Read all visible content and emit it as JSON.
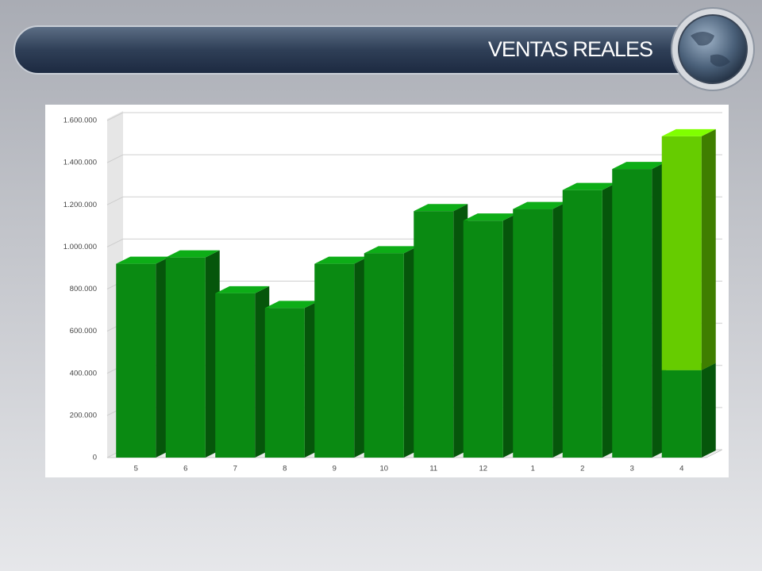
{
  "chart_data": {
    "type": "bar",
    "title": "VENTAS REALES",
    "categories": [
      "5",
      "6",
      "7",
      "8",
      "9",
      "10",
      "11",
      "12",
      "1",
      "2",
      "3",
      "4"
    ],
    "series": [
      {
        "color": "#0a8a12",
        "values": [
          920000,
          950000,
          780000,
          710000,
          920000,
          970000,
          1170000,
          1125000,
          1180000,
          1270000,
          1370000,
          415000
        ]
      },
      {
        "color": "#66cc00",
        "values": [
          null,
          null,
          null,
          null,
          null,
          null,
          null,
          null,
          null,
          null,
          null,
          1110000
        ]
      }
    ],
    "stacked": true,
    "ylim": [
      0,
      1600000
    ],
    "yticks": [
      0,
      {
        "value": 200000,
        "label": "200.000"
      },
      {
        "value": 400000,
        "label": "400.000"
      },
      {
        "value": 600000,
        "label": "600.000"
      },
      {
        "value": 800000,
        "label": "800.000"
      },
      {
        "value": 1000000,
        "label": "1.000.000"
      },
      {
        "value": 1200000,
        "label": "1.200.000"
      },
      {
        "value": 1400000,
        "label": "1.400.000"
      },
      {
        "value": 1600000,
        "label": "1.600.000"
      }
    ],
    "grid": true
  }
}
